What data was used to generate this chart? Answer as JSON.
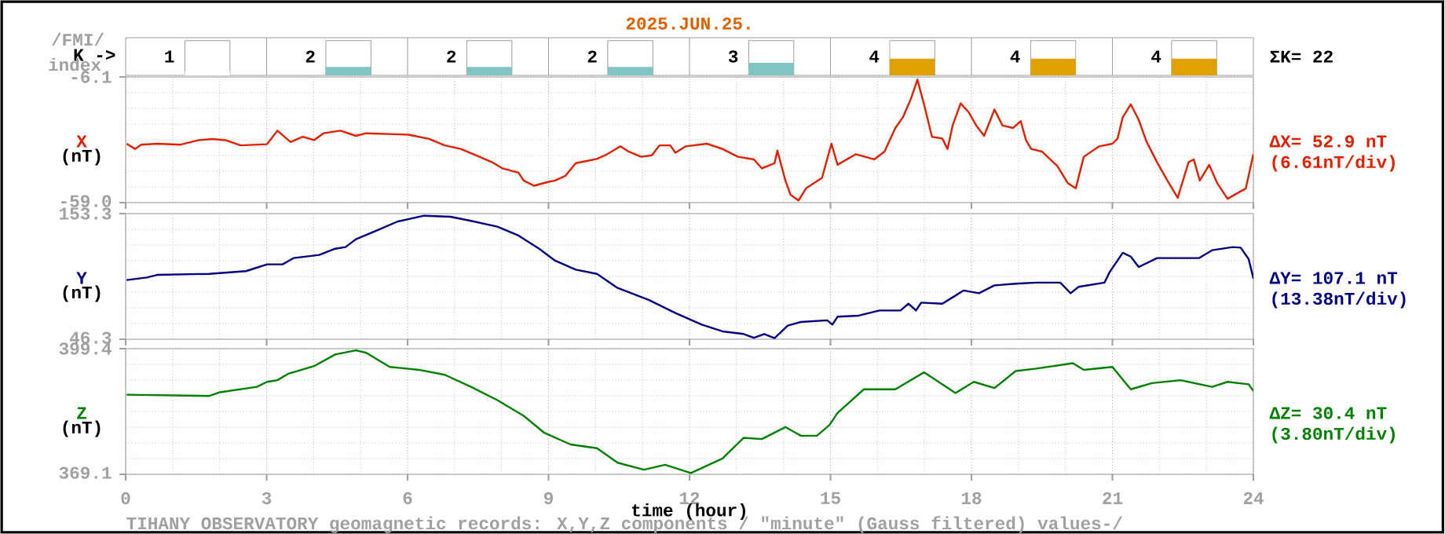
{
  "chart_data": [
    {
      "type": "bar",
      "title": "2025.JUN.25.",
      "ylabel": "K ->",
      "annotations": [
        "/FMI/",
        "index",
        "ΣK= 22"
      ],
      "categories": [
        null,
        null,
        null,
        null,
        null,
        null,
        null,
        null
      ],
      "values": [
        1,
        2,
        2,
        2,
        3,
        4,
        4,
        4
      ],
      "colors": [
        "#ffffff",
        "#80c4c4",
        "#80c4c4",
        "#80c4c4",
        "#80c4c4",
        "#e0a000",
        "#e0a000",
        "#e0a000"
      ],
      "ylim": [
        0,
        9
      ],
      "data_labels": true,
      "tick_labels": false
    },
    {
      "type": "line",
      "ylabel": "X",
      "annotations": [
        "(nT)",
        "ΔX= 52.9 nT",
        "(6.61nT/div)"
      ],
      "color": "#e02000",
      "xlim": [
        0,
        24
      ],
      "ylim": [
        -59.0,
        -6.1
      ],
      "xticks": [
        0,
        3,
        6,
        9,
        12,
        15,
        18,
        21,
        24
      ],
      "yticks": [
        {
          "value": -59.0,
          "label": "-59.0"
        },
        {
          "value": -6.1,
          "label": "-6.1"
        }
      ],
      "grid": true,
      "tick_labels": "y",
      "x": [
        0.02,
        0.2,
        0.33,
        0.67,
        1.17,
        1.56,
        1.84,
        2.12,
        2.45,
        3.01,
        3.23,
        3.51,
        3.77,
        4.01,
        4.21,
        4.57,
        4.9,
        5.12,
        6.02,
        6.46,
        6.79,
        7.13,
        7.46,
        7.8,
        8.02,
        8.36,
        8.47,
        8.69,
        8.97,
        9.14,
        9.36,
        9.58,
        10.03,
        10.25,
        10.53,
        10.7,
        10.97,
        11.2,
        11.36,
        11.59,
        11.7,
        11.92,
        12.37,
        12.7,
        13.03,
        13.37,
        13.54,
        13.81,
        13.87,
        14.04,
        14.15,
        14.32,
        14.48,
        14.82,
        15.02,
        15.15,
        15.54,
        15.93,
        16.15,
        16.38,
        16.54,
        16.71,
        16.85,
        16.99,
        17.16,
        17.38,
        17.49,
        17.6,
        17.77,
        17.94,
        18.1,
        18.27,
        18.49,
        18.66,
        18.88,
        19.05,
        19.16,
        19.27,
        19.5,
        19.83,
        20.05,
        20.22,
        20.39,
        20.72,
        21.0,
        21.11,
        21.22,
        21.39,
        21.56,
        21.72,
        21.95,
        22.17,
        22.39,
        22.62,
        22.73,
        22.86,
        23.06,
        23.23,
        23.45,
        23.84,
        24.0
      ],
      "values": [
        -34.2,
        -36.4,
        -34.6,
        -34.2,
        -34.6,
        -32.7,
        -32.2,
        -32.7,
        -34.9,
        -34.4,
        -28.7,
        -33.5,
        -31.3,
        -32.7,
        -29.8,
        -28.7,
        -30.9,
        -29.8,
        -30.4,
        -32.2,
        -34.9,
        -36.4,
        -39.1,
        -42.0,
        -44.6,
        -46.4,
        -49.7,
        -51.9,
        -50.4,
        -49.7,
        -47.7,
        -42.4,
        -40.6,
        -38.6,
        -35.3,
        -37.5,
        -39.7,
        -39.1,
        -34.9,
        -34.9,
        -38.0,
        -35.3,
        -34.2,
        -36.4,
        -39.7,
        -40.8,
        -44.6,
        -42.4,
        -37.1,
        -49.7,
        -55.7,
        -58.1,
        -53.0,
        -48.6,
        -34.2,
        -43.1,
        -38.6,
        -40.8,
        -37.5,
        -27.6,
        -23.1,
        -15.4,
        -7.2,
        -17.6,
        -31.3,
        -32.0,
        -36.4,
        -26.5,
        -17.2,
        -20.9,
        -26.5,
        -30.9,
        -19.8,
        -26.5,
        -27.6,
        -24.7,
        -32.7,
        -36.4,
        -37.5,
        -43.7,
        -50.8,
        -53.0,
        -39.7,
        -35.3,
        -34.2,
        -32.0,
        -23.1,
        -17.6,
        -24.2,
        -33.1,
        -42.0,
        -49.7,
        -57.0,
        -42.0,
        -40.8,
        -49.7,
        -43.1,
        -50.8,
        -57.4,
        -53.0,
        -38.6
      ]
    },
    {
      "type": "line",
      "ylabel": "Y",
      "annotations": [
        "(nT)",
        "ΔY= 107.1 nT",
        "(13.38nT/div)"
      ],
      "color": "#000080",
      "xlim": [
        0,
        24
      ],
      "ylim": [
        46.3,
        153.3
      ],
      "xticks": [
        0,
        3,
        6,
        9,
        12,
        15,
        18,
        21,
        24
      ],
      "yticks": [
        {
          "value": 46.3,
          "label": "46.3"
        },
        {
          "value": 153.3,
          "label": "153.3"
        }
      ],
      "grid": true,
      "tick_labels": "y",
      "x": [
        0.02,
        0.45,
        0.67,
        1.78,
        2.56,
        3.01,
        3.34,
        3.57,
        4.12,
        4.46,
        4.68,
        4.9,
        5.35,
        5.79,
        6.35,
        6.91,
        7.35,
        7.91,
        8.36,
        8.8,
        9.14,
        9.58,
        10.03,
        10.47,
        11.14,
        11.7,
        12.26,
        12.7,
        13.15,
        13.37,
        13.59,
        13.81,
        14.09,
        14.37,
        14.93,
        15.04,
        15.15,
        15.6,
        16.04,
        16.49,
        16.66,
        16.82,
        16.93,
        17.38,
        17.6,
        17.83,
        18.16,
        18.49,
        18.94,
        19.38,
        19.89,
        20.11,
        20.28,
        20.83,
        20.94,
        21.22,
        21.39,
        21.56,
        21.95,
        22.39,
        22.84,
        23.12,
        23.56,
        23.73,
        23.9,
        24.0
      ],
      "values": [
        96.7,
        98.9,
        101.1,
        102.0,
        104.3,
        110.1,
        110.1,
        115.4,
        118.1,
        123.4,
        124.8,
        131.5,
        139.0,
        146.6,
        151.5,
        150.6,
        147.1,
        142.2,
        134.6,
        123.4,
        113.2,
        105.6,
        102.0,
        90.0,
        79.7,
        68.6,
        58.8,
        53.0,
        50.8,
        47.6,
        50.8,
        47.2,
        57.9,
        61.0,
        62.4,
        58.8,
        65.5,
        66.4,
        70.8,
        70.8,
        76.6,
        70.8,
        77.5,
        76.6,
        82.0,
        87.8,
        85.5,
        92.2,
        93.6,
        94.5,
        94.5,
        85.5,
        90.9,
        94.5,
        103.4,
        119.9,
        116.7,
        107.8,
        115.4,
        115.4,
        115.4,
        122.1,
        124.8,
        124.3,
        114.5,
        98.0
      ]
    },
    {
      "type": "line",
      "ylabel": "Z",
      "xlabel": "time (hour)",
      "annotations": [
        "(nT)",
        "ΔZ= 30.4 nT",
        "(3.80nT/div)",
        "TIHANY OBSERVATORY geomagnetic records: X,Y,Z components / \"minute\" (Gauss filtered) values-/"
      ],
      "color": "#008000",
      "xlim": [
        0,
        24
      ],
      "ylim": [
        369.1,
        399.4
      ],
      "xticks": [
        0,
        3,
        6,
        9,
        12,
        15,
        18,
        21,
        24
      ],
      "yticks": [
        {
          "value": 369.1,
          "label": "369.1"
        },
        {
          "value": 399.4,
          "label": "399.4"
        }
      ],
      "grid": true,
      "x": [
        0.02,
        1.78,
        2.01,
        2.79,
        3.01,
        3.23,
        3.45,
        4.01,
        4.46,
        4.9,
        5.12,
        5.62,
        6.24,
        6.79,
        7.35,
        7.91,
        8.47,
        8.91,
        9.47,
        10.03,
        10.47,
        11.03,
        11.48,
        12.03,
        12.7,
        13.15,
        13.54,
        14.04,
        14.37,
        14.71,
        14.98,
        15.15,
        15.71,
        16.38,
        16.99,
        17.66,
        18.05,
        18.49,
        18.94,
        19.38,
        20.16,
        20.39,
        21.0,
        21.39,
        21.84,
        22.45,
        23.12,
        23.45,
        23.9,
        24.0
      ],
      "values": [
        388.3,
        388.0,
        388.9,
        390.2,
        391.4,
        391.8,
        393.3,
        395.2,
        398.0,
        399.0,
        398.4,
        395.0,
        394.3,
        393.1,
        390.2,
        387.0,
        383.2,
        379.1,
        376.3,
        375.4,
        371.9,
        370.2,
        371.4,
        369.4,
        372.9,
        377.9,
        377.6,
        380.5,
        378.4,
        378.4,
        381.0,
        383.9,
        389.6,
        389.6,
        393.7,
        388.7,
        391.4,
        389.9,
        394.0,
        394.6,
        395.9,
        394.3,
        395.0,
        389.6,
        391.1,
        391.8,
        390.2,
        391.4,
        390.8,
        389.2
      ]
    }
  ]
}
